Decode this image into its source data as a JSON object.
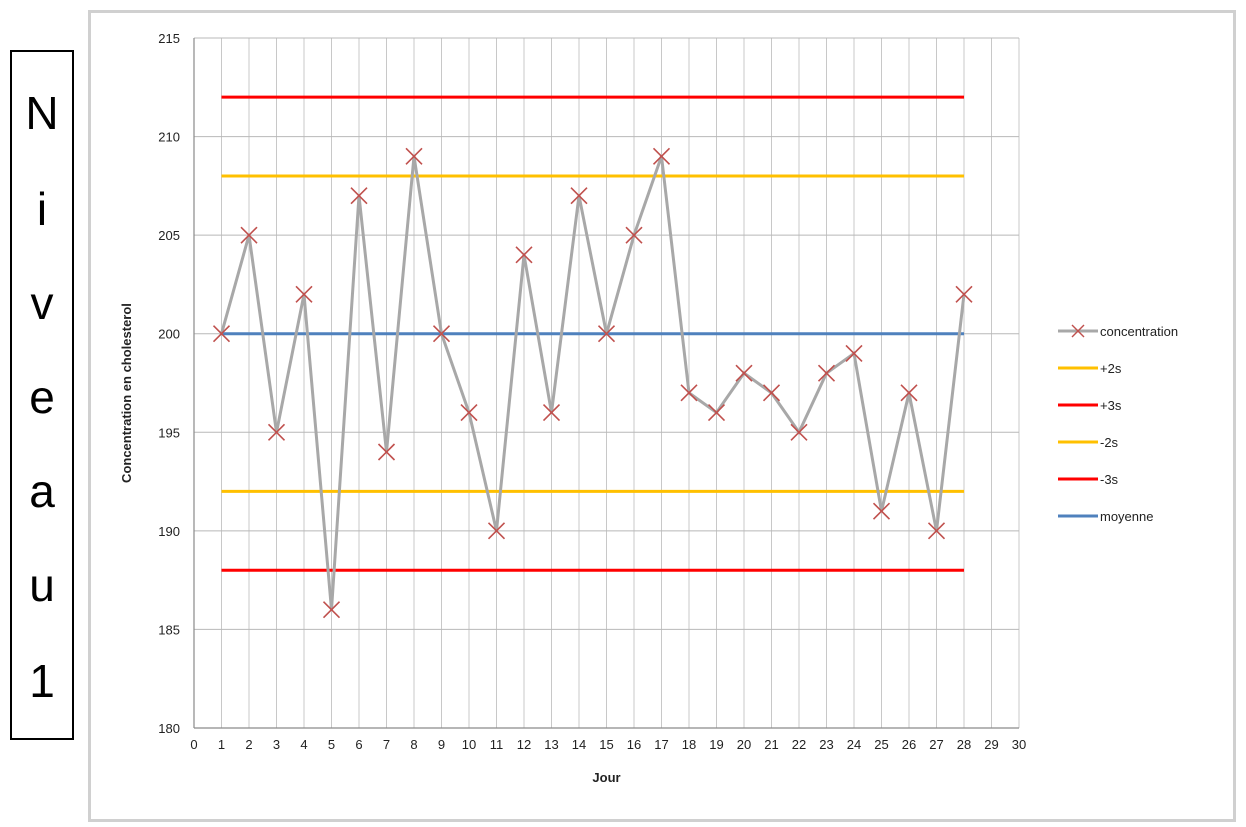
{
  "side_label": {
    "letters": [
      "N",
      "i",
      "v",
      "e",
      "a",
      "u",
      "1"
    ]
  },
  "chart_data": {
    "type": "line",
    "xlabel": "Jour",
    "ylabel": "Concentration en cholesterol",
    "xlim": [
      0,
      30
    ],
    "ylim": [
      180,
      215
    ],
    "x_ticks": [
      0,
      1,
      2,
      3,
      4,
      5,
      6,
      7,
      8,
      9,
      10,
      11,
      12,
      13,
      14,
      15,
      16,
      17,
      18,
      19,
      20,
      21,
      22,
      23,
      24,
      25,
      26,
      27,
      28,
      29,
      30
    ],
    "y_ticks": [
      180,
      185,
      190,
      195,
      200,
      205,
      210,
      215
    ],
    "grid": true,
    "legend_position": "right",
    "series": [
      {
        "name": "concentration",
        "color": "#a8a8a8",
        "marker_color": "#c0504d",
        "x": [
          1,
          2,
          3,
          4,
          5,
          6,
          7,
          8,
          9,
          10,
          11,
          12,
          13,
          14,
          15,
          16,
          17,
          18,
          19,
          20,
          21,
          22,
          23,
          24,
          25,
          26,
          27,
          28
        ],
        "values": [
          200,
          205,
          195,
          202,
          186,
          207,
          194,
          209,
          200,
          196,
          190,
          204,
          196,
          207,
          200,
          205,
          209,
          197,
          196,
          198,
          197,
          195,
          198,
          199,
          191,
          197,
          190,
          202
        ]
      },
      {
        "name": "+2s",
        "color": "#ffc000",
        "x": [
          1,
          28
        ],
        "values": [
          208,
          208
        ]
      },
      {
        "name": "+3s",
        "color": "#ff0000",
        "x": [
          1,
          28
        ],
        "values": [
          212,
          212
        ]
      },
      {
        "name": "-2s",
        "color": "#ffc000",
        "x": [
          1,
          28
        ],
        "values": [
          192,
          192
        ]
      },
      {
        "name": "-3s",
        "color": "#ff0000",
        "x": [
          1,
          28
        ],
        "values": [
          188,
          188
        ]
      },
      {
        "name": "moyenne",
        "color": "#4f81bd",
        "x": [
          1,
          28
        ],
        "values": [
          200,
          200
        ]
      }
    ]
  }
}
